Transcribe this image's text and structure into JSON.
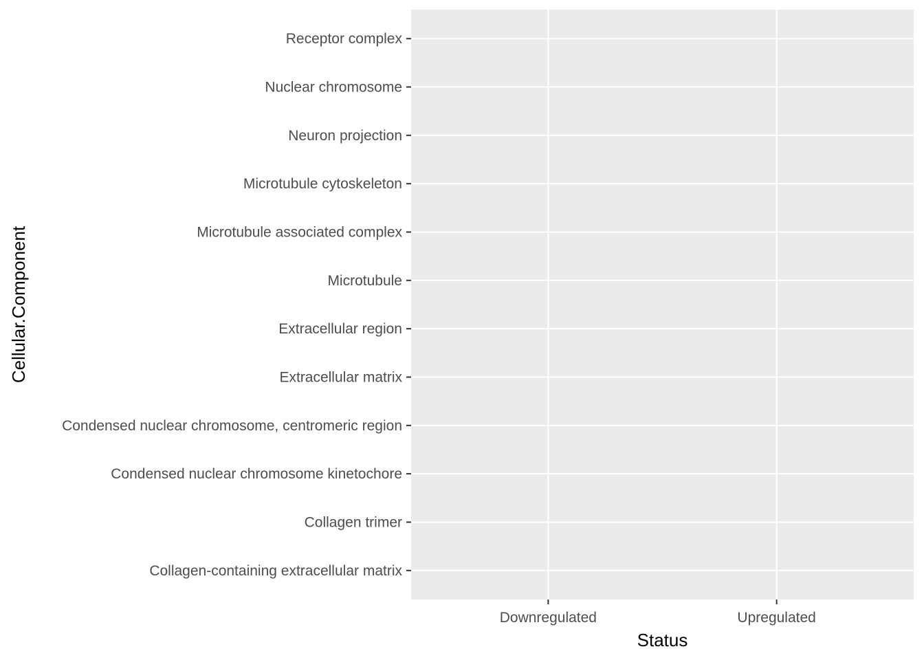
{
  "chart_data": {
    "type": "heatmap",
    "title": "",
    "xlabel": "Status",
    "ylabel": "Cellular.Component",
    "x_categories": [
      "Downregulated",
      "Upregulated"
    ],
    "y_categories": [
      "Receptor complex",
      "Nuclear chromosome",
      "Neuron projection",
      "Microtubule cytoskeleton",
      "Microtubule associated complex",
      "Microtubule",
      "Extracellular region",
      "Extracellular matrix",
      "Condensed nuclear chromosome, centromeric region",
      "Condensed nuclear chromosome kinetochore",
      "Collagen trimer",
      "Collagen-containing extracellular matrix"
    ],
    "values": [],
    "grid": true,
    "panel_background": "#ebebeb",
    "grid_color": "#ffffff",
    "tick_color": "#333333",
    "legend": "none"
  }
}
